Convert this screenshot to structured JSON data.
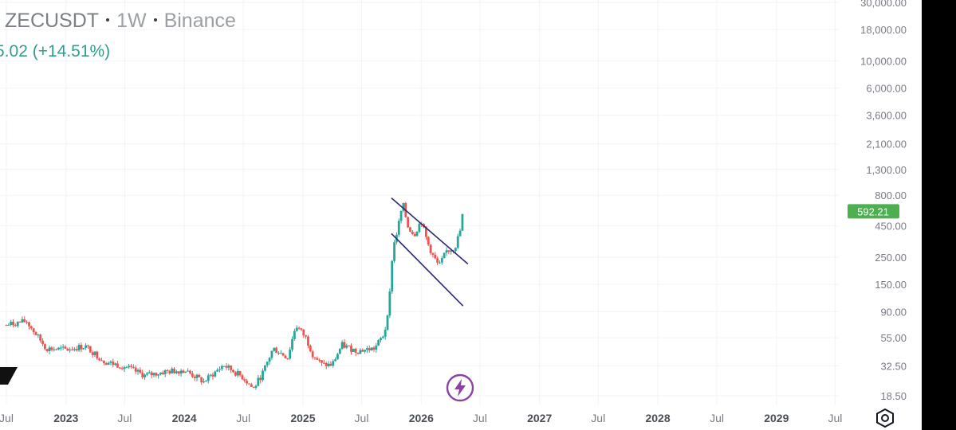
{
  "header": {
    "symbol": "ZECUSDT",
    "interval": "1W",
    "exchange": "Binance",
    "change_text": "5.02 (+14.51%)"
  },
  "colors": {
    "up": "#26a69a",
    "down": "#ef5350",
    "price_badge": "#4caf50",
    "channel_lines": "#2a2a7a",
    "grid": "#f0f3fa",
    "axis_text": "#787b86",
    "lightning_icon": "#8e3fa5"
  },
  "icons": [
    "tradingview-logo-fragment",
    "lightning-icon",
    "settings-hexagon-icon"
  ],
  "chart_data": {
    "type": "candlestick",
    "y_scale": "log",
    "ylim": [
      16,
      30000
    ],
    "x_ticks": [
      "Jul",
      "2023",
      "Jul",
      "2024",
      "Jul",
      "2025",
      "Jul",
      "2026",
      "Jul",
      "2027",
      "Jul",
      "2028",
      "Jul",
      "2029",
      "Jul"
    ],
    "y_ticks": [
      "30,000.00",
      "18,000.00",
      "10,000.00",
      "6,000.00",
      "3,600.00",
      "2,100.00",
      "1,300.00",
      "800.00",
      "450.00",
      "250.00",
      "150.00",
      "90.00",
      "55.00",
      "32.50",
      "18.50"
    ],
    "y_tick_values": [
      30000,
      18000,
      10000,
      6000,
      3600,
      2100,
      1300,
      800,
      450,
      250,
      150,
      90,
      55,
      32.5,
      18.5
    ],
    "last_price_label": "592.21",
    "last_price": 592.21,
    "x_range": [
      "2022-07-01",
      "2029-08-01"
    ],
    "channel_lines": [
      {
        "from": [
          "2025-10-01",
          760
        ],
        "to": [
          "2026-05-25",
          220
        ]
      },
      {
        "from": [
          "2025-10-01",
          390
        ],
        "to": [
          "2026-05-10",
          100
        ]
      }
    ],
    "anchors": [
      [
        "2022-07-01",
        70
      ],
      [
        "2022-09-01",
        75
      ],
      [
        "2022-11-01",
        45
      ],
      [
        "2023-01-01",
        44
      ],
      [
        "2023-03-01",
        47
      ],
      [
        "2023-05-01",
        35
      ],
      [
        "2023-07-01",
        32
      ],
      [
        "2023-09-01",
        27
      ],
      [
        "2023-11-01",
        29
      ],
      [
        "2024-01-01",
        30
      ],
      [
        "2024-03-01",
        24
      ],
      [
        "2024-05-01",
        33
      ],
      [
        "2024-07-01",
        26
      ],
      [
        "2024-08-01",
        21
      ],
      [
        "2024-09-01",
        29
      ],
      [
        "2024-10-01",
        45
      ],
      [
        "2024-11-15",
        38
      ],
      [
        "2024-12-10",
        70
      ],
      [
        "2025-01-10",
        55
      ],
      [
        "2025-02-01",
        40
      ],
      [
        "2025-03-01",
        33
      ],
      [
        "2025-04-01",
        33
      ],
      [
        "2025-05-01",
        48
      ],
      [
        "2025-06-15",
        43
      ],
      [
        "2025-08-10",
        45
      ],
      [
        "2025-09-10",
        60
      ],
      [
        "2025-09-25",
        115
      ],
      [
        "2025-10-05",
        290
      ],
      [
        "2025-10-20",
        420
      ],
      [
        "2025-11-05",
        690
      ],
      [
        "2025-11-20",
        450
      ],
      [
        "2025-12-10",
        380
      ],
      [
        "2026-01-01",
        500
      ],
      [
        "2026-01-20",
        330
      ],
      [
        "2026-02-05",
        260
      ],
      [
        "2026-02-25",
        210
      ],
      [
        "2026-03-20",
        280
      ],
      [
        "2026-04-15",
        300
      ],
      [
        "2026-05-01",
        410
      ],
      [
        "2026-05-10",
        592
      ]
    ]
  }
}
